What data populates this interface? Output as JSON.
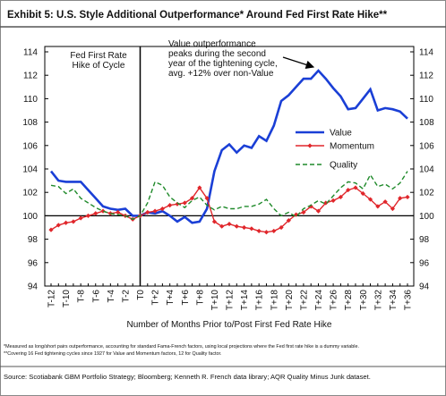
{
  "chart_data": {
    "type": "line",
    "title": "Exhibit 5: U.S. Style Additional Outperformance* Around Fed First Rate Hike**",
    "x_label": "Number of Months Prior to/Post First Fed Rate Hike",
    "categories": [
      "T-12",
      null,
      "T-10",
      null,
      "T-8",
      null,
      "T-6",
      null,
      "T-4",
      null,
      "T-2",
      null,
      "T0",
      null,
      "T+2",
      null,
      "T+4",
      null,
      "T+6",
      null,
      "T+8",
      null,
      "T+10",
      null,
      "T+12",
      null,
      "T+14",
      null,
      "T+16",
      null,
      "T+18",
      null,
      "T+20",
      null,
      "T+22",
      null,
      "T+24",
      null,
      "T+26",
      null,
      "T+28",
      null,
      "T+30",
      null,
      "T+32",
      null,
      "T+34",
      null,
      "T+36"
    ],
    "series": [
      {
        "name": "Value",
        "color": "#1a3fd6",
        "line_style": "solid",
        "marker": "none",
        "values": [
          103.8,
          103,
          102.9,
          102.9,
          102.9,
          102.2,
          101.5,
          100.8,
          100.6,
          100.5,
          100.6,
          100.0,
          100.0,
          100.3,
          100.2,
          100.4,
          100.0,
          99.5,
          99.9,
          99.4,
          99.5,
          100.6,
          103.8,
          105.6,
          106.1,
          105.4,
          106.0,
          105.8,
          106.8,
          106.4,
          107.7,
          109.8,
          110.3,
          111.0,
          111.7,
          111.7,
          112.4,
          111.7,
          110.9,
          110.2,
          109.1,
          109.2,
          110.0,
          110.8,
          109.0,
          109.2,
          109.1,
          108.9,
          108.3
        ]
      },
      {
        "name": "Momentum",
        "color": "#e0262b",
        "line_style": "solid",
        "marker": "diamond",
        "values": [
          98.8,
          99.2,
          99.4,
          99.5,
          99.8,
          100.0,
          100.2,
          100.4,
          100.2,
          100.3,
          100.0,
          99.7,
          100.0,
          100.3,
          100.4,
          100.6,
          100.9,
          101.0,
          101.1,
          101.5,
          102.4,
          101.5,
          99.5,
          99.1,
          99.3,
          99.1,
          99.0,
          98.9,
          98.7,
          98.6,
          98.7,
          99.0,
          99.6,
          100.1,
          100.3,
          100.8,
          100.4,
          101.1,
          101.3,
          101.6,
          102.2,
          102.4,
          101.9,
          101.4,
          100.8,
          101.2,
          100.6,
          101.5,
          101.6
        ]
      },
      {
        "name": "Quality",
        "color": "#1f8a2a",
        "line_style": "dashed",
        "marker": "none",
        "values": [
          102.6,
          102.5,
          101.9,
          102.3,
          101.5,
          101.1,
          100.7,
          100.4,
          100.2,
          100.1,
          100.0,
          99.7,
          100.0,
          101.1,
          102.9,
          102.6,
          101.6,
          101.1,
          100.7,
          101.3,
          101.6,
          100.9,
          100.5,
          100.8,
          100.6,
          100.6,
          100.8,
          100.8,
          101.0,
          101.4,
          100.6,
          100.0,
          100.3,
          99.9,
          100.6,
          100.9,
          101.3,
          101.0,
          101.7,
          102.4,
          102.9,
          102.8,
          102.3,
          103.5,
          102.5,
          102.7,
          102.3,
          102.8,
          103.8
        ]
      }
    ],
    "ylim": [
      94,
      114
    ],
    "yticks": [
      94,
      96,
      98,
      100,
      102,
      104,
      106,
      108,
      110,
      112,
      114
    ],
    "y2lim": [
      94,
      114
    ],
    "y2ticks": [
      94,
      96,
      98,
      100,
      102,
      104,
      106,
      108,
      110,
      112,
      114
    ],
    "reference_line": 100,
    "legend": "right",
    "annotations": [
      [
        "Fed First Rate",
        "Hike of Cycle"
      ],
      [
        "Value outperformance",
        "peaks during the second",
        "year of the tightening cycle,",
        "avg. +12% over non-Value"
      ]
    ],
    "footnotes": [
      "*Measured as long/short pairs outperformance, accounting for standard Fama-French factors, using local projections where the Fed first rate hike is a dummy variable.",
      "**Covering 16 Fed tightening cycles since 1927 for Value and Momentum factors, 12 for Quality factor."
    ],
    "source": "Source: Scotiabank GBM Portfolio Strategy; Bloomberg; Kenneth R. French data library; AQR Quality Minus Junk dataset."
  }
}
